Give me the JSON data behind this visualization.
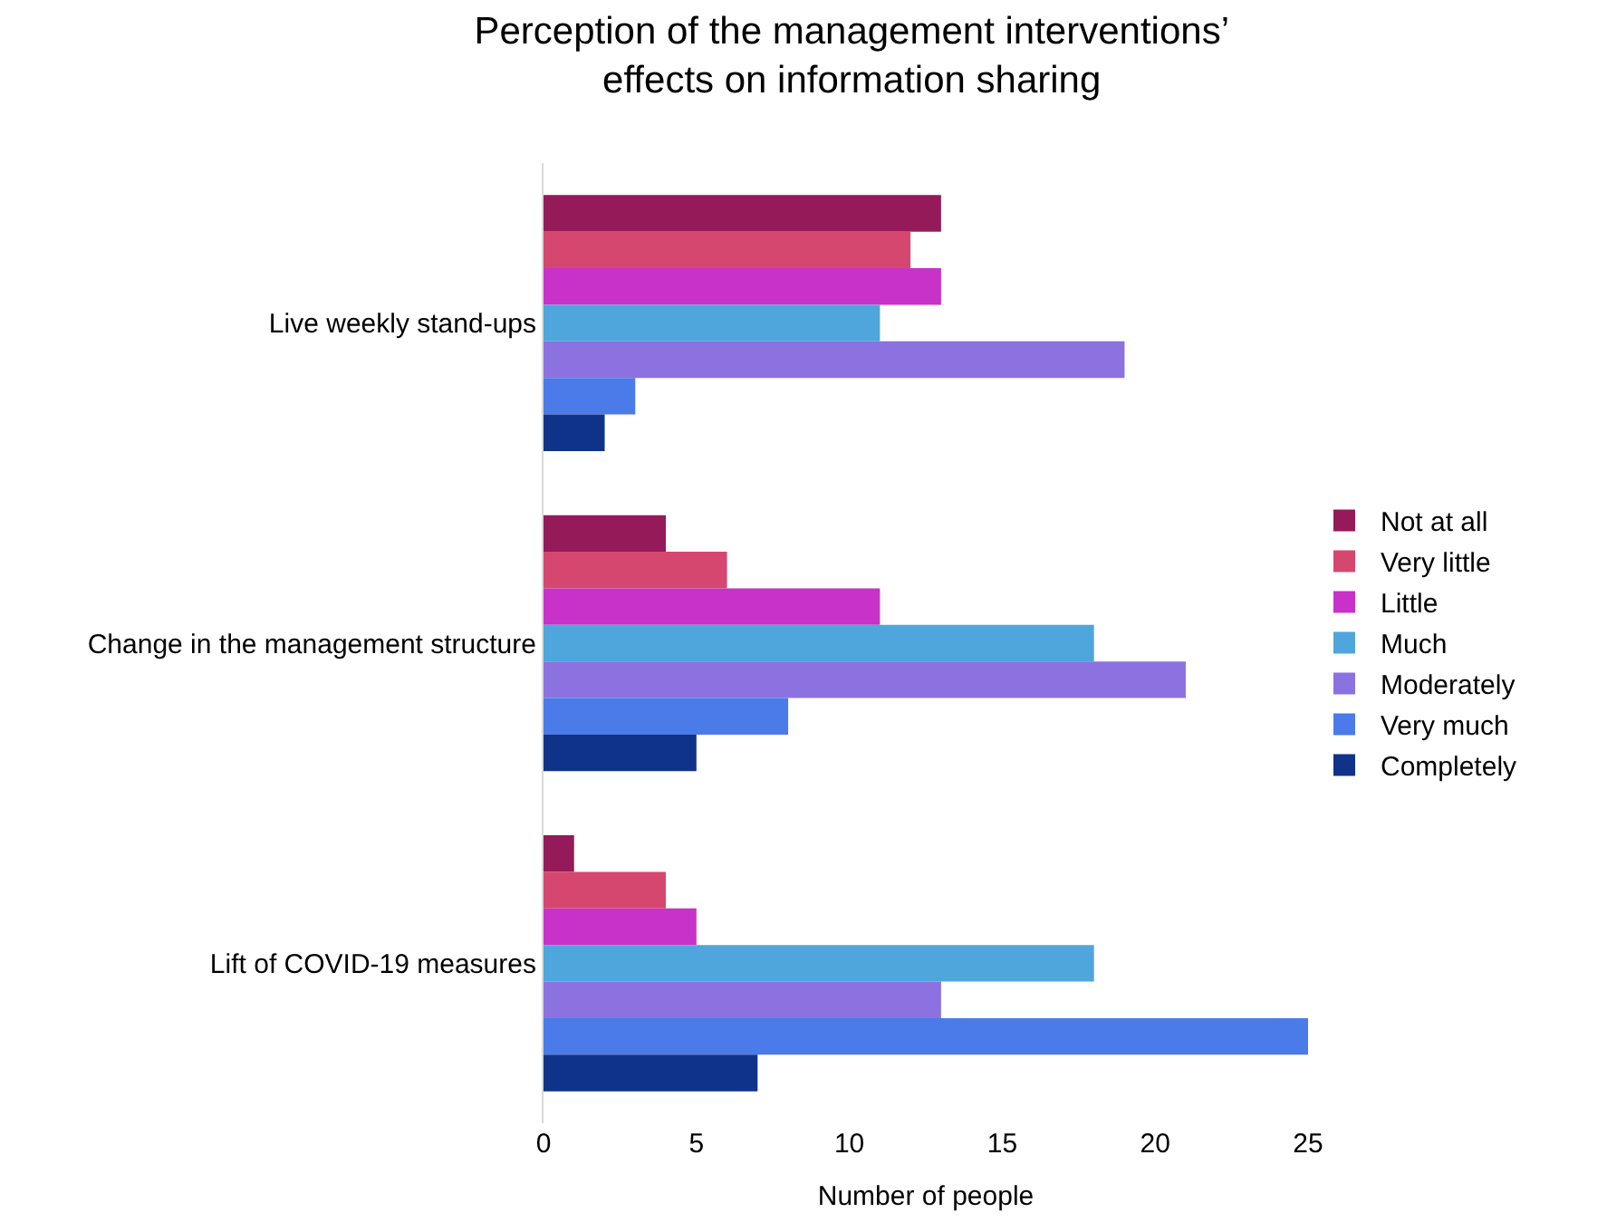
{
  "chart_data": {
    "type": "bar",
    "orientation": "horizontal",
    "title": "Perception of the management interventions’ effects on information sharing",
    "xlabel": "Number of people",
    "categories": [
      "Live weekly stand-ups",
      "Change in the management structure",
      "Lift of COVID-19 measures"
    ],
    "series": [
      {
        "name": "Not at all",
        "color": "#951a5a",
        "values": [
          13,
          4,
          1
        ]
      },
      {
        "name": "Very little",
        "color": "#d6476f",
        "values": [
          12,
          6,
          4
        ]
      },
      {
        "name": "Little",
        "color": "#c832c8",
        "values": [
          13,
          11,
          5
        ]
      },
      {
        "name": "Much",
        "color": "#4ea6dc",
        "values": [
          11,
          18,
          18
        ]
      },
      {
        "name": "Moderately",
        "color": "#8b72e0",
        "values": [
          19,
          21,
          13
        ]
      },
      {
        "name": "Very much",
        "color": "#4a7be8",
        "values": [
          3,
          8,
          25
        ]
      },
      {
        "name": "Completely",
        "color": "#10338a",
        "values": [
          2,
          5,
          7
        ]
      }
    ],
    "xlim": [
      0,
      25
    ],
    "xticks": [
      0,
      5,
      10,
      15,
      20,
      25
    ],
    "legend": "right"
  }
}
